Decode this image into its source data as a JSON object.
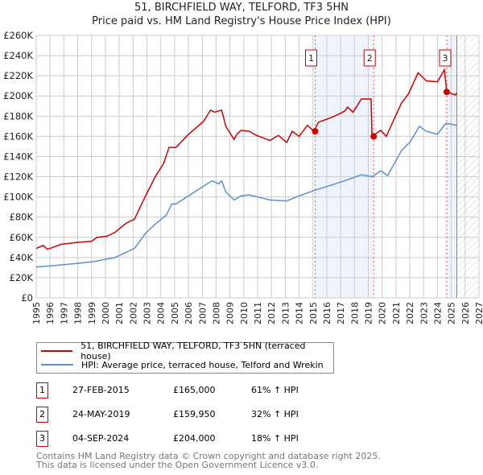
{
  "chart_data": {
    "type": "line",
    "title": "51, BIRCHFIELD WAY, TELFORD, TF3 5HN",
    "subtitle": "Price paid vs. HM Land Registry's House Price Index (HPI)",
    "xlim": [
      1995,
      2027
    ],
    "ylim": [
      0,
      260000
    ],
    "x_ticks": [
      "1995",
      "1996",
      "1997",
      "1998",
      "1999",
      "2000",
      "2001",
      "2002",
      "2003",
      "2004",
      "2005",
      "2006",
      "2007",
      "2008",
      "2009",
      "2010",
      "2011",
      "2012",
      "2013",
      "2014",
      "2015",
      "2016",
      "2017",
      "2018",
      "2019",
      "2020",
      "2021",
      "2022",
      "2023",
      "2024",
      "2025",
      "2026",
      "2027"
    ],
    "y_ticks": [
      {
        "v": 0,
        "label": "£0"
      },
      {
        "v": 20000,
        "label": "£20K"
      },
      {
        "v": 40000,
        "label": "£40K"
      },
      {
        "v": 60000,
        "label": "£60K"
      },
      {
        "v": 80000,
        "label": "£80K"
      },
      {
        "v": 100000,
        "label": "£100K"
      },
      {
        "v": 120000,
        "label": "£120K"
      },
      {
        "v": 140000,
        "label": "£140K"
      },
      {
        "v": 160000,
        "label": "£160K"
      },
      {
        "v": 180000,
        "label": "£180K"
      },
      {
        "v": 200000,
        "label": "£200K"
      },
      {
        "v": 220000,
        "label": "£220K"
      },
      {
        "v": 240000,
        "label": "£240K"
      },
      {
        "v": 260000,
        "label": "£260K"
      }
    ],
    "grid": true,
    "series": [
      {
        "name": "51, BIRCHFIELD WAY, TELFORD, TF3 5HN (terraced house)",
        "color": "#cc0000",
        "x": [
          1995,
          1995.5,
          1995.8,
          1996.8,
          1998,
          1999,
          1999.4,
          2000.1,
          2000.7,
          2001.5,
          2002.1,
          2002.9,
          2003.6,
          2004.2,
          2004.6,
          2005.1,
          2006,
          2007.1,
          2007.6,
          2007.9,
          2008.4,
          2008.7,
          2009.3,
          2009.5,
          2009.8,
          2010.4,
          2010.9,
          2011.9,
          2012.5,
          2013.1,
          2013.5,
          2014,
          2014.6,
          2015.07,
          2015.4,
          2016.4,
          2017.3,
          2017.5,
          2017.9,
          2018.5,
          2019.2,
          2019.27,
          2019.9,
          2020.3,
          2020.9,
          2021.4,
          2021.9,
          2022.6,
          2023.2,
          2024,
          2024.5,
          2024.67,
          2025.3,
          2025.4
        ],
        "y": [
          49000,
          52000,
          48000,
          53000,
          55000,
          56000,
          60000,
          61000,
          65000,
          74000,
          78000,
          101000,
          120000,
          133000,
          149000,
          149000,
          162000,
          175000,
          186000,
          184000,
          186000,
          170000,
          157000,
          162000,
          166000,
          165000,
          161000,
          156000,
          161000,
          154000,
          165000,
          160000,
          171000,
          165000,
          174000,
          179000,
          185000,
          189000,
          184000,
          197000,
          197000,
          159950,
          166000,
          160000,
          178000,
          193000,
          202000,
          223000,
          215000,
          214000,
          226000,
          204000,
          201000,
          203000
        ]
      },
      {
        "name": "HPI: Average price, terraced house, Telford and Wrekin",
        "color": "#5b8fd4",
        "x": [
          1995,
          1996.3,
          1998.2,
          1999.2,
          2000.1,
          2000.7,
          2002.1,
          2002.9,
          2003.6,
          2004.4,
          2004.8,
          2005.1,
          2006,
          2006.9,
          2007.7,
          2008.2,
          2008.4,
          2008.7,
          2009.3,
          2009.8,
          2010.4,
          2011.9,
          2013.1,
          2014,
          2015,
          2016.4,
          2017.5,
          2018.5,
          2019.3,
          2019.9,
          2020.4,
          2021.4,
          2022,
          2022.7,
          2023.2,
          2024,
          2024.6,
          2025.4
        ],
        "y": [
          30600,
          32000,
          34500,
          36000,
          38500,
          40000,
          49000,
          64000,
          73000,
          82000,
          93000,
          93000,
          101000,
          109000,
          116000,
          113000,
          116000,
          105000,
          97000,
          101000,
          102000,
          97000,
          96000,
          101000,
          106000,
          112000,
          117000,
          122000,
          120000,
          126000,
          121000,
          146000,
          154000,
          170000,
          165000,
          162000,
          173000,
          171000
        ]
      }
    ],
    "sales": [
      {
        "id": "1",
        "x": 2015.16,
        "price": 165000,
        "date": "27-FEB-2015",
        "price_label": "£165,000",
        "hpi": "61% ↑ HPI"
      },
      {
        "id": "2",
        "x": 2019.39,
        "price": 159950,
        "date": "24-MAY-2019",
        "price_label": "£159,950",
        "hpi": "32% ↑ HPI"
      },
      {
        "id": "3",
        "x": 2024.67,
        "price": 204000,
        "date": "04-SEP-2024",
        "price_label": "£204,000",
        "hpi": "18% ↑ HPI"
      }
    ],
    "shaded_ranges": [
      [
        2015.16,
        2019.39
      ],
      [
        2024.67,
        2025.4
      ]
    ],
    "hatched_from": 2025.4
  },
  "title": "51, BIRCHFIELD WAY, TELFORD, TF3 5HN",
  "subtitle": "Price paid vs. HM Land Registry's House Price Index (HPI)",
  "legend": {
    "red": "51, BIRCHFIELD WAY, TELFORD, TF3 5HN (terraced house)",
    "blue": "HPI: Average price, terraced house, Telford and Wrekin"
  },
  "footer": {
    "line1": "Contains HM Land Registry data © Crown copyright and database right 2025.",
    "line2": "This data is licensed under the Open Government Licence v3.0."
  }
}
